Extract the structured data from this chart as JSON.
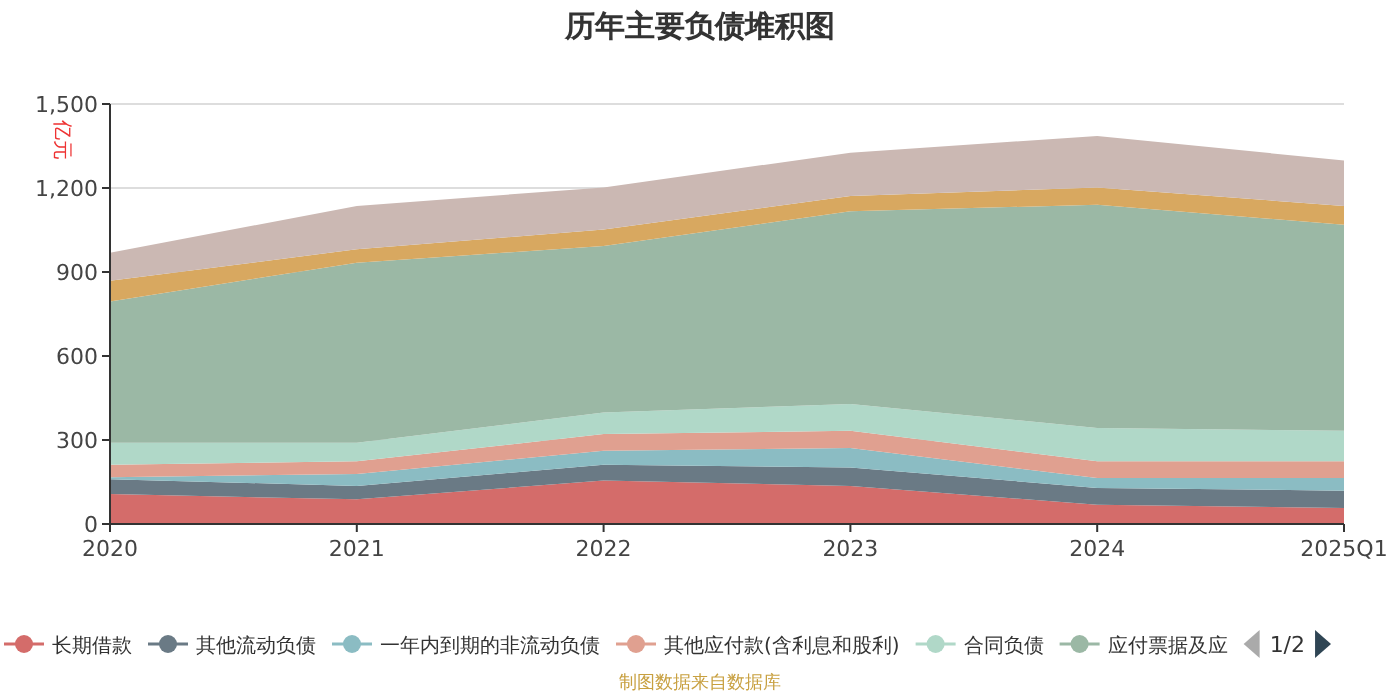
{
  "chart_data": {
    "type": "area",
    "stacked": true,
    "title": "历年主要负债堆积图",
    "ylabel": "亿元",
    "categories": [
      "2020",
      "2021",
      "2022",
      "2023",
      "2024",
      "2025Q1"
    ],
    "series": [
      {
        "name": "长期借款",
        "color": "#d46c6a",
        "values": [
          107,
          88,
          155,
          136,
          69,
          57
        ]
      },
      {
        "name": "其他流动负债",
        "color": "#6a7a85",
        "values": [
          53,
          48,
          57,
          66,
          60,
          62
        ]
      },
      {
        "name": "一年内到期的非流动负债",
        "color": "#8bbcc3",
        "values": [
          7,
          43,
          50,
          69,
          35,
          45
        ]
      },
      {
        "name": "其他应付款(含利息和股利)",
        "color": "#e0a090",
        "values": [
          45,
          45,
          59,
          62,
          60,
          60
        ]
      },
      {
        "name": "合同负债",
        "color": "#b0d8c8",
        "values": [
          78,
          66,
          77,
          96,
          119,
          109
        ]
      },
      {
        "name": "应付票据及应",
        "color": "#9bb8a5",
        "values": [
          505,
          643,
          595,
          688,
          797,
          736
        ]
      },
      {
        "color": "#d8a860",
        "values": [
          74,
          48,
          59,
          54,
          62,
          67
        ]
      },
      {
        "color": "#cbb8b3",
        "values": [
          100,
          155,
          150,
          155,
          184,
          162
        ]
      }
    ],
    "ylim": [
      0,
      1500
    ],
    "yticks": [
      0,
      {
        "value": 300,
        "label": "300"
      },
      {
        "value": 600,
        "label": "600"
      },
      {
        "value": 900,
        "label": "900"
      },
      {
        "value": 1200,
        "label": "1,200"
      },
      {
        "value": 1500,
        "label": "1,500"
      }
    ],
    "grid": "y",
    "legend": "bottom",
    "annotations": [
      "1/2",
      "制图数据来自数据库"
    ]
  }
}
